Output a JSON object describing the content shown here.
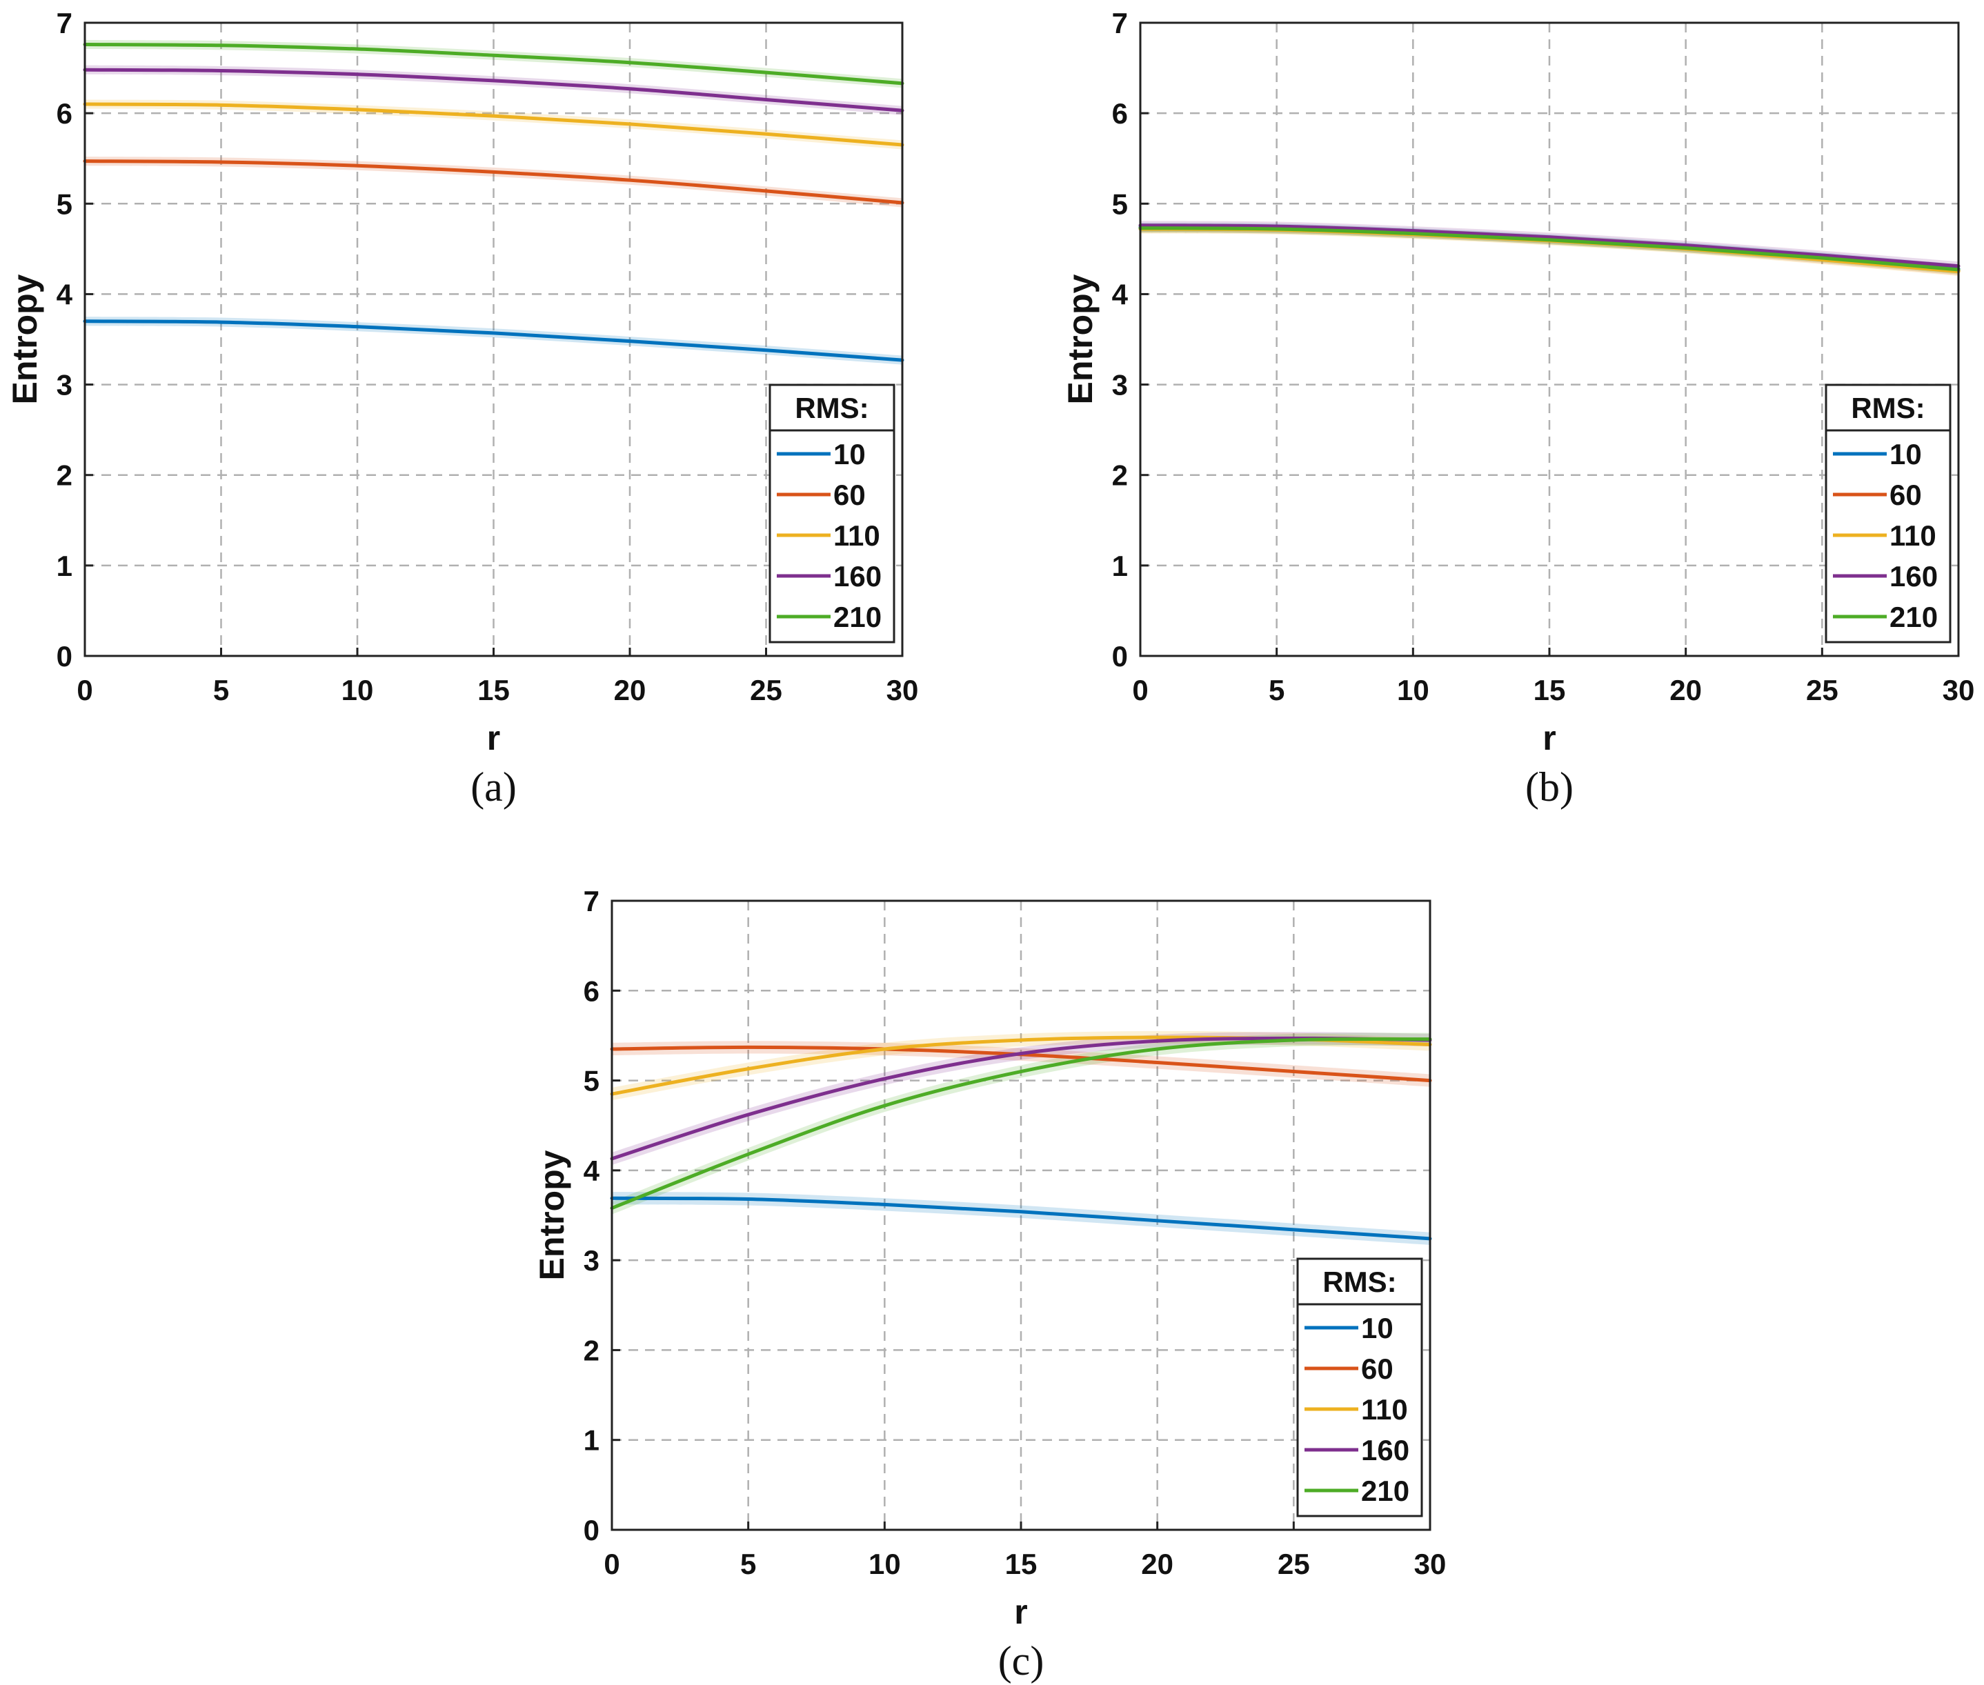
{
  "chart_data": [
    {
      "panel": "a",
      "type": "line",
      "caption": "(a)",
      "xlabel": "r",
      "ylabel": "Entropy",
      "xlim": [
        0,
        30
      ],
      "ylim": [
        0,
        7
      ],
      "xticks": [
        "0",
        "5",
        "10",
        "15",
        "20",
        "25",
        "30"
      ],
      "yticks": [
        "0",
        "1",
        "2",
        "3",
        "4",
        "5",
        "6",
        "7"
      ],
      "grid": true,
      "legend": {
        "title": "RMS:",
        "position": "bottom-right"
      },
      "x": [
        0,
        5,
        10,
        15,
        20,
        25,
        30
      ],
      "series": [
        {
          "name": "10",
          "color": "#0072BD",
          "values": [
            3.7,
            3.69,
            3.64,
            3.57,
            3.48,
            3.38,
            3.27
          ]
        },
        {
          "name": "60",
          "color": "#D95319",
          "values": [
            5.47,
            5.46,
            5.42,
            5.35,
            5.26,
            5.14,
            5.01
          ]
        },
        {
          "name": "110",
          "color": "#EDB120",
          "values": [
            6.1,
            6.09,
            6.04,
            5.97,
            5.88,
            5.77,
            5.65
          ]
        },
        {
          "name": "160",
          "color": "#7E2F8E",
          "values": [
            6.48,
            6.47,
            6.43,
            6.36,
            6.27,
            6.15,
            6.03
          ]
        },
        {
          "name": "210",
          "color": "#4DAC26",
          "values": [
            6.76,
            6.75,
            6.71,
            6.64,
            6.56,
            6.45,
            6.33
          ]
        }
      ]
    },
    {
      "panel": "b",
      "type": "line",
      "caption": "(b)",
      "xlabel": "r",
      "ylabel": "Entropy",
      "xlim": [
        0,
        30
      ],
      "ylim": [
        0,
        7
      ],
      "xticks": [
        "0",
        "5",
        "10",
        "15",
        "20",
        "25",
        "30"
      ],
      "yticks": [
        "0",
        "1",
        "2",
        "3",
        "4",
        "5",
        "6",
        "7"
      ],
      "grid": true,
      "legend": {
        "title": "RMS:",
        "position": "bottom-right"
      },
      "x": [
        0,
        5,
        10,
        15,
        20,
        25,
        30
      ],
      "series": [
        {
          "name": "10",
          "color": "#0072BD",
          "values": [
            4.74,
            4.73,
            4.68,
            4.61,
            4.52,
            4.41,
            4.28
          ]
        },
        {
          "name": "60",
          "color": "#D95319",
          "values": [
            4.73,
            4.72,
            4.67,
            4.6,
            4.51,
            4.39,
            4.26
          ]
        },
        {
          "name": "110",
          "color": "#EDB120",
          "values": [
            4.72,
            4.71,
            4.66,
            4.59,
            4.5,
            4.38,
            4.25
          ]
        },
        {
          "name": "160",
          "color": "#7E2F8E",
          "values": [
            4.76,
            4.75,
            4.7,
            4.63,
            4.54,
            4.43,
            4.31
          ]
        },
        {
          "name": "210",
          "color": "#4DAC26",
          "values": [
            4.73,
            4.72,
            4.67,
            4.6,
            4.51,
            4.4,
            4.27
          ]
        }
      ]
    },
    {
      "panel": "c",
      "type": "line",
      "caption": "(c)",
      "xlabel": "r",
      "ylabel": "Entropy",
      "xlim": [
        0,
        30
      ],
      "ylim": [
        0,
        7
      ],
      "xticks": [
        "0",
        "5",
        "10",
        "15",
        "20",
        "25",
        "30"
      ],
      "yticks": [
        "0",
        "1",
        "2",
        "3",
        "4",
        "5",
        "6",
        "7"
      ],
      "grid": true,
      "legend": {
        "title": "RMS:",
        "position": "bottom-right"
      },
      "x": [
        0,
        5,
        10,
        15,
        20,
        25,
        30
      ],
      "series": [
        {
          "name": "10",
          "color": "#0072BD",
          "values": [
            3.69,
            3.68,
            3.62,
            3.54,
            3.44,
            3.34,
            3.24
          ]
        },
        {
          "name": "60",
          "color": "#D95319",
          "values": [
            5.35,
            5.37,
            5.35,
            5.29,
            5.2,
            5.1,
            5.0
          ]
        },
        {
          "name": "110",
          "color": "#EDB120",
          "values": [
            4.85,
            5.13,
            5.35,
            5.45,
            5.48,
            5.46,
            5.4
          ]
        },
        {
          "name": "160",
          "color": "#7E2F8E",
          "values": [
            4.13,
            4.62,
            5.02,
            5.3,
            5.44,
            5.47,
            5.45
          ]
        },
        {
          "name": "210",
          "color": "#4DAC26",
          "values": [
            3.58,
            4.18,
            4.72,
            5.1,
            5.35,
            5.45,
            5.46
          ]
        }
      ]
    }
  ]
}
